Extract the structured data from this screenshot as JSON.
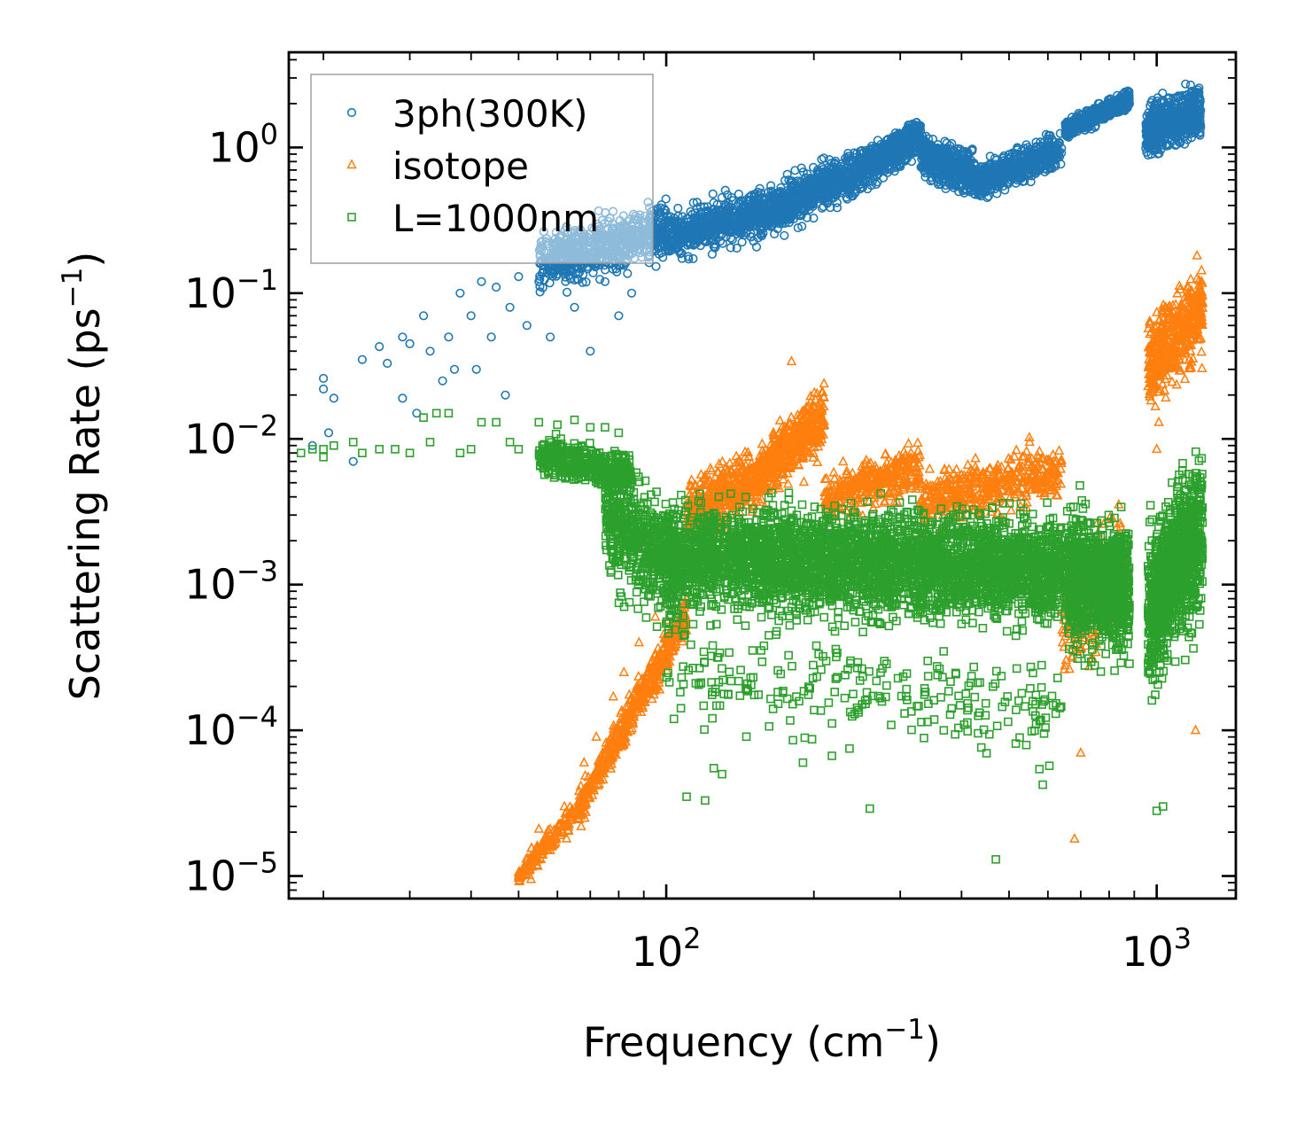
{
  "chart_data": {
    "type": "scatter",
    "title": "",
    "xlabel": "Frequency (cm",
    "xlabel_exp": "−1",
    "xlabel_suffix": ")",
    "ylabel": "Scattering Rate (ps",
    "ylabel_exp": "−1",
    "ylabel_suffix": ")",
    "xscale": "log",
    "yscale": "log",
    "xlim": [
      17,
      1450
    ],
    "ylim": [
      7e-06,
      4.5
    ],
    "x_ticks": [
      {
        "base": "10",
        "exp": "2",
        "value": 100
      },
      {
        "base": "10",
        "exp": "3",
        "value": 1000
      }
    ],
    "y_ticks": [
      {
        "base": "10",
        "exp": "0",
        "value": 1
      },
      {
        "base": "10",
        "exp": "−1",
        "value": 0.1
      },
      {
        "base": "10",
        "exp": "−2",
        "value": 0.01
      },
      {
        "base": "10",
        "exp": "−3",
        "value": 0.001
      },
      {
        "base": "10",
        "exp": "−4",
        "value": 0.0001
      },
      {
        "base": "10",
        "exp": "−5",
        "value": 1e-05
      }
    ],
    "legend_position": "top-left",
    "series": [
      {
        "name": "3ph(300K)",
        "marker": "circle-open",
        "color": "#1f77b4",
        "points": [
          [
            19,
            0.009
          ],
          [
            20,
            0.022
          ],
          [
            20,
            0.026
          ],
          [
            20.5,
            0.011
          ],
          [
            21,
            0.019
          ],
          [
            23,
            0.007
          ],
          [
            24,
            0.035
          ],
          [
            26,
            0.043
          ],
          [
            27,
            0.033
          ],
          [
            29,
            0.019
          ],
          [
            29,
            0.05
          ],
          [
            30,
            0.045
          ],
          [
            31,
            0.015
          ],
          [
            32,
            0.07
          ],
          [
            33,
            0.04
          ],
          [
            35,
            0.025
          ],
          [
            36,
            0.05
          ],
          [
            37,
            0.03
          ],
          [
            38,
            0.1
          ],
          [
            40,
            0.07
          ],
          [
            41,
            0.03
          ],
          [
            42,
            0.12
          ],
          [
            44,
            0.05
          ],
          [
            45,
            0.11
          ],
          [
            47,
            0.02
          ],
          [
            48,
            0.08
          ],
          [
            50,
            0.13
          ],
          [
            52,
            0.06
          ],
          [
            55,
            0.12
          ],
          [
            58,
            0.05
          ],
          [
            60,
            0.15
          ],
          [
            65,
            0.08
          ],
          [
            70,
            0.04
          ],
          [
            75,
            0.12
          ],
          [
            80,
            0.07
          ],
          [
            85,
            0.1
          ]
        ],
        "bands": [
          {
            "x_range": [
              55,
              100
            ],
            "y_log_center": [
              -0.8,
              -0.55
            ],
            "y_log_spread": 0.17,
            "count": 650
          },
          {
            "x_range": [
              100,
              160
            ],
            "y_log_center": [
              -0.6,
              -0.45
            ],
            "y_log_spread": 0.14,
            "count": 550
          },
          {
            "x_range": [
              160,
              250
            ],
            "y_log_center": [
              -0.45,
              -0.15
            ],
            "y_log_spread": 0.13,
            "count": 650
          },
          {
            "x_range": [
              250,
              330
            ],
            "y_log_center": [
              -0.15,
              0.08
            ],
            "y_log_spread": 0.1,
            "count": 550
          },
          {
            "x_range": [
              330,
              430
            ],
            "y_log_center": [
              -0.05,
              -0.2
            ],
            "y_log_spread": 0.12,
            "count": 450
          },
          {
            "x_range": [
              430,
              640
            ],
            "y_log_center": [
              -0.25,
              0.0
            ],
            "y_log_spread": 0.1,
            "count": 550
          },
          {
            "x_range": [
              650,
              880
            ],
            "y_log_center": [
              0.12,
              0.33
            ],
            "y_log_spread": 0.05,
            "count": 550
          },
          {
            "x_range": [
              950,
              1230
            ],
            "y_log_center": [
              0.1,
              0.25
            ],
            "y_log_spread": 0.14,
            "count": 650
          }
        ]
      },
      {
        "name": "isotope",
        "marker": "triangle-open",
        "color": "#ff7f0e",
        "points": [
          [
            50,
            1.05e-05
          ],
          [
            51,
            1.1e-05
          ],
          [
            53,
            9.5e-06
          ],
          [
            55,
            2.1e-05
          ],
          [
            58,
            1.5e-05
          ],
          [
            62,
            3e-05
          ],
          [
            68,
            6e-05
          ],
          [
            72,
            9e-05
          ],
          [
            78,
            0.00017
          ],
          [
            82,
            0.00025
          ],
          [
            88,
            0.0004
          ],
          [
            95,
            0.0006
          ],
          [
            100,
            0.0008
          ],
          [
            180,
            0.034
          ],
          [
            680,
            1.8e-05
          ],
          [
            700,
            7e-05
          ],
          [
            1000,
            0.0085
          ],
          [
            1010,
            0.013
          ],
          [
            1200,
            0.0001
          ]
        ],
        "bands": [
          {
            "x_range": [
              50,
              66
            ],
            "y_log_center": [
              -5.0,
              -4.55
            ],
            "y_log_spread": 0.07,
            "count": 150
          },
          {
            "x_range": [
              66,
              110
            ],
            "y_log_center": [
              -4.55,
              -3.2
            ],
            "y_log_spread": 0.12,
            "count": 500
          },
          {
            "x_range": [
              110,
              155
            ],
            "y_log_center": [
              -2.5,
              -2.25
            ],
            "y_log_spread": 0.18,
            "count": 400
          },
          {
            "x_range": [
              155,
              210
            ],
            "y_log_center": [
              -2.25,
              -1.85
            ],
            "y_log_spread": 0.18,
            "count": 450
          },
          {
            "x_range": [
              210,
              330
            ],
            "y_log_center": [
              -2.4,
              -2.2
            ],
            "y_log_spread": 0.14,
            "count": 350
          },
          {
            "x_range": [
              330,
              640
            ],
            "y_log_center": [
              -2.45,
              -2.2
            ],
            "y_log_spread": 0.16,
            "count": 450
          },
          {
            "x_range": [
              640,
              860
            ],
            "y_log_center": [
              -3.3,
              -2.9
            ],
            "y_log_spread": 0.35,
            "count": 250
          },
          {
            "x_range": [
              960,
              1240
            ],
            "y_log_center": [
              -1.5,
              -1.1
            ],
            "y_log_spread": 0.25,
            "count": 450
          }
        ]
      },
      {
        "name": "L=1000nm",
        "marker": "square-open",
        "color": "#2ca02c",
        "points": [
          [
            18,
            0.008
          ],
          [
            19,
            0.0085
          ],
          [
            20,
            0.0075
          ],
          [
            20,
            0.0085
          ],
          [
            21,
            0.009
          ],
          [
            23,
            0.0095
          ],
          [
            24,
            0.008
          ],
          [
            26,
            0.0085
          ],
          [
            28,
            0.0085
          ],
          [
            30,
            0.008
          ],
          [
            32,
            0.014
          ],
          [
            33,
            0.0095
          ],
          [
            34,
            0.015
          ],
          [
            36,
            0.015
          ],
          [
            38,
            0.008
          ],
          [
            40,
            0.0085
          ],
          [
            42,
            0.013
          ],
          [
            45,
            0.013
          ],
          [
            48,
            0.0095
          ],
          [
            50,
            0.0085
          ],
          [
            55,
            0.013
          ],
          [
            60,
            0.0125
          ],
          [
            65,
            0.0135
          ],
          [
            70,
            0.012
          ],
          [
            75,
            0.012
          ],
          [
            80,
            0.011
          ],
          [
            110,
            3.5e-05
          ],
          [
            120,
            3.3e-05
          ],
          [
            125,
            5.5e-05
          ],
          [
            130,
            5e-05
          ],
          [
            190,
            6e-05
          ],
          [
            260,
            2.9e-05
          ],
          [
            470,
            1.3e-05
          ],
          [
            1000,
            2.8e-05
          ],
          [
            1030,
            3e-05
          ]
        ],
        "bands": [
          {
            "x_range": [
              55,
              85
            ],
            "y_log_center": [
              -2.1,
              -2.25
            ],
            "y_log_spread": 0.1,
            "count": 450
          },
          {
            "x_range": [
              75,
              105
            ],
            "y_log_center": [
              -2.5,
              -2.9
            ],
            "y_log_spread": 0.35,
            "count": 550
          },
          {
            "x_range": [
              100,
              640
            ],
            "y_log_center": [
              -2.8,
              -2.9
            ],
            "y_log_spread": 0.3,
            "count": 3600
          },
          {
            "x_range": [
              100,
              640
            ],
            "y_log_center": [
              -3.6,
              -3.9
            ],
            "y_log_spread": 0.3,
            "count": 260
          },
          {
            "x_range": [
              650,
              880
            ],
            "y_log_center": [
              -2.95,
              -3.0
            ],
            "y_log_spread": 0.38,
            "count": 950
          },
          {
            "x_range": [
              960,
              1240
            ],
            "y_log_center": [
              -3.2,
              -2.6
            ],
            "y_log_spread": 0.45,
            "count": 950
          }
        ]
      }
    ]
  }
}
